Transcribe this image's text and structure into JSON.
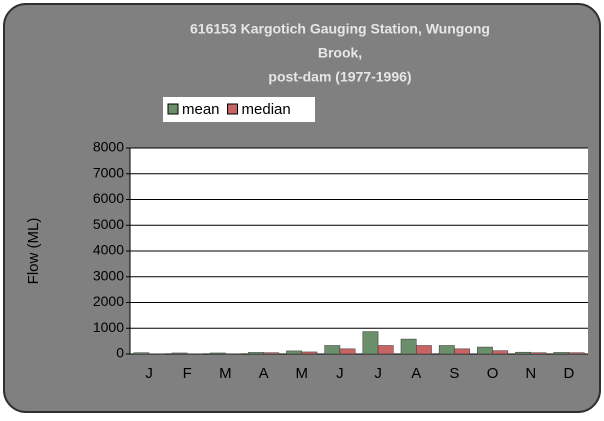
{
  "chart_data": {
    "type": "bar",
    "title": [
      "616153 Kargotich Gauging Station, Wungong",
      "Brook,",
      "post-dam (1977-1996)"
    ],
    "ylabel": "Flow (ML)",
    "categories": [
      "J",
      "F",
      "M",
      "A",
      "M",
      "J",
      "J",
      "A",
      "S",
      "O",
      "N",
      "D"
    ],
    "series": [
      {
        "name": "mean",
        "color": "#6a8f6a",
        "values": [
          50,
          40,
          40,
          60,
          120,
          330,
          870,
          580,
          330,
          270,
          70,
          60
        ]
      },
      {
        "name": "median",
        "color": "#c86464",
        "values": [
          10,
          5,
          5,
          50,
          80,
          200,
          330,
          330,
          200,
          130,
          50,
          50
        ]
      }
    ],
    "ylim": [
      0,
      8000
    ],
    "yticks": [
      0,
      1000,
      2000,
      3000,
      4000,
      5000,
      6000,
      7000,
      8000
    ],
    "grid": true,
    "legend": "top"
  }
}
